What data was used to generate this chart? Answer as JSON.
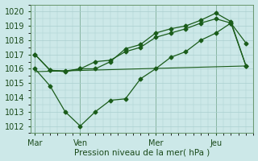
{
  "xlabel": "Pression niveau de la mer( hPa )",
  "bg_color": "#cce8e8",
  "grid_color": "#aacfcf",
  "line_color": "#1a5c1a",
  "ylim": [
    1011.5,
    1020.5
  ],
  "yticks": [
    1012,
    1013,
    1014,
    1015,
    1016,
    1017,
    1018,
    1019,
    1020
  ],
  "day_labels": [
    "Mar",
    "Ven",
    "Mer",
    "Jeu"
  ],
  "day_positions": [
    0,
    3,
    8,
    12
  ],
  "xlim": [
    -0.3,
    14.5
  ],
  "vline_positions": [
    0,
    3,
    8,
    12
  ],
  "line1_x": [
    0,
    1,
    2,
    3,
    4,
    5,
    6,
    7,
    8,
    9,
    10,
    11,
    12,
    13,
    14
  ],
  "line1_y": [
    1017.0,
    1015.9,
    1015.8,
    1016.0,
    1016.5,
    1016.6,
    1017.2,
    1017.5,
    1018.2,
    1018.5,
    1018.8,
    1019.2,
    1019.5,
    1019.2,
    1017.8
  ],
  "line2_x": [
    0,
    1,
    2,
    3,
    4,
    5,
    6,
    7,
    8,
    9,
    10,
    11,
    12,
    13,
    14
  ],
  "line2_y": [
    1017.0,
    1015.9,
    1015.85,
    1016.0,
    1016.0,
    1016.5,
    1017.4,
    1017.7,
    1018.5,
    1018.8,
    1019.0,
    1019.4,
    1019.9,
    1019.3,
    1016.2
  ],
  "line3_x": [
    0,
    1,
    2,
    3,
    4,
    5,
    6,
    7,
    8,
    9,
    10,
    11,
    12,
    13,
    14
  ],
  "line3_y": [
    1016.0,
    1014.8,
    1013.0,
    1012.0,
    1013.0,
    1013.8,
    1013.9,
    1015.3,
    1016.0,
    1016.8,
    1017.2,
    1018.0,
    1018.5,
    1019.2,
    1016.2
  ],
  "line4_x": [
    0,
    14
  ],
  "line4_y": [
    1015.8,
    1016.2
  ]
}
